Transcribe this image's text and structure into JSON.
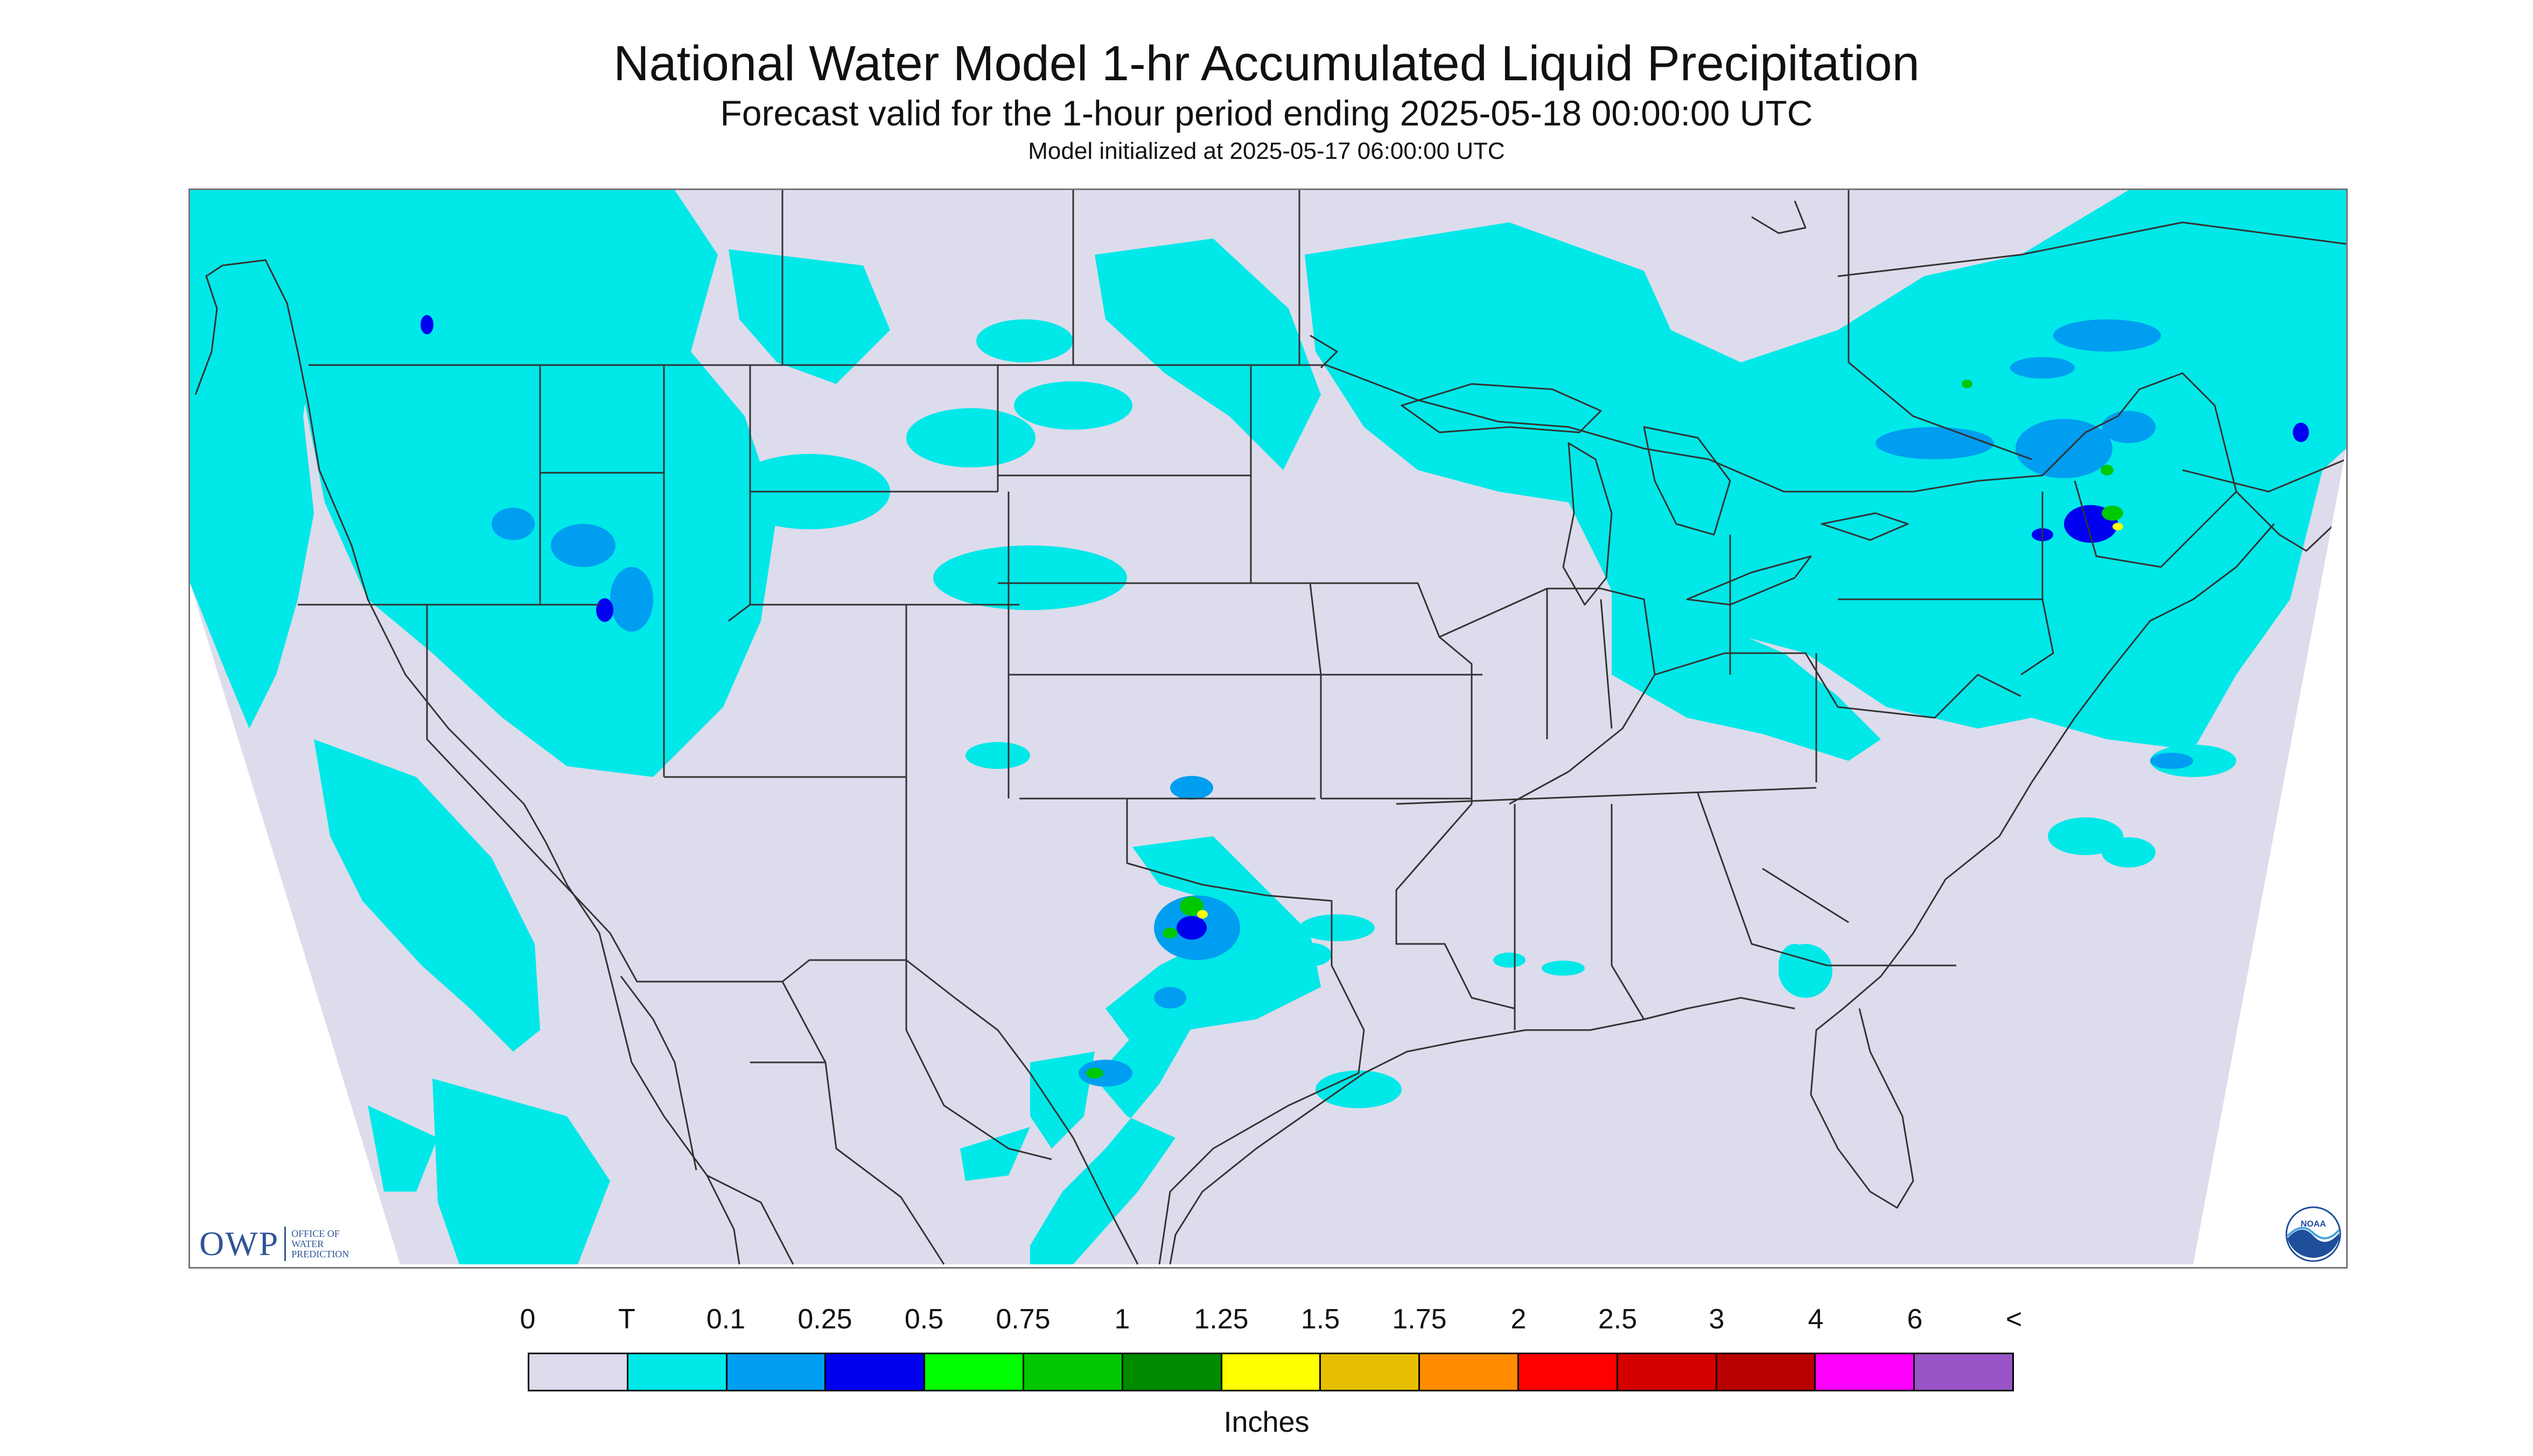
{
  "header": {
    "title": "National Water Model 1-hr Accumulated Liquid Precipitation",
    "subtitle": "Forecast valid for the 1-hour period ending 2025-05-18 00:00:00 UTC",
    "init_line": "Model initialized at 2025-05-17 06:00:00 UTC"
  },
  "map": {
    "background_color": "#dcdcec",
    "outside_domain_color": "#ffffff",
    "boundary_color": "#333333",
    "region": "Contiguous United States with parts of Canada and Mexico",
    "precip_areas": [
      {
        "region": "Pacific Northwest and northern Rockies",
        "level": "T"
      },
      {
        "region": "Great Basin and Idaho",
        "level": "0.1"
      },
      {
        "region": "Upper Midwest and Great Lakes",
        "level": "T"
      },
      {
        "region": "Ontario and Quebec",
        "level": "0.25"
      },
      {
        "region": "Northern New York and New England",
        "level": "0.5"
      },
      {
        "region": "Southern Oklahoma and north Texas",
        "level": "1.25"
      },
      {
        "region": "South-central Texas",
        "level": "0.75"
      },
      {
        "region": "Southern California and Baja coast",
        "level": "T"
      },
      {
        "region": "Gulf Coast",
        "level": "T"
      },
      {
        "region": "Atlantic offshore",
        "level": "T"
      }
    ]
  },
  "logos": {
    "owp_text": "OWP",
    "owp_subtext": [
      "OFFICE OF",
      "WATER",
      "PREDICTION"
    ],
    "noaa_text": "NOAA"
  },
  "legend": {
    "labels": [
      "0",
      "T",
      "0.1",
      "0.25",
      "0.5",
      "0.75",
      "1",
      "1.25",
      "1.5",
      "1.75",
      "2",
      "2.5",
      "3",
      "4",
      "6",
      "<"
    ],
    "colors": [
      "#dcdcec",
      "#00e8e8",
      "#009ef0",
      "#0000f0",
      "#00ff00",
      "#00c800",
      "#008c00",
      "#ffff00",
      "#e6c000",
      "#ff8c00",
      "#ff0000",
      "#d40000",
      "#b80000",
      "#ff00ff",
      "#9955c8"
    ],
    "units": "Inches"
  }
}
